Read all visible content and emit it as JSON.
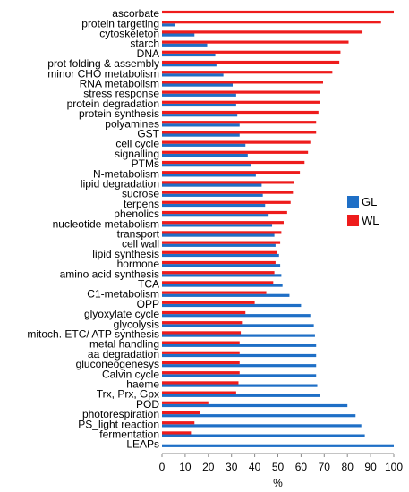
{
  "chart_data": {
    "type": "bar",
    "orientation": "horizontal",
    "title": "",
    "xlabel": "%",
    "ylabel": "",
    "xlim": [
      0,
      100
    ],
    "xticks": [
      0,
      10,
      20,
      30,
      40,
      50,
      60,
      70,
      80,
      90,
      100
    ],
    "grid": false,
    "legend_position": "right",
    "categories": [
      "ascorbate",
      "protein targeting",
      "cytoskeleton",
      "starch",
      "DNA",
      "prot folding & assembly",
      "minor CHO metabolism",
      "RNA metabolism",
      "stress response",
      "protein degradation",
      "protein synthesis",
      "polyamines",
      "GST",
      "cell cycle",
      "signalling",
      "PTMs",
      "N-metabolism",
      "lipid degradation",
      "sucrose",
      "terpens",
      "phenolics",
      "nucleotide metabolism",
      "transport",
      "cell wall",
      "lipid synthesis",
      "hormone",
      "amino acid synthesis",
      "TCA",
      "C1-metabolism",
      "OPP",
      "glyoxylate cycle",
      "glycolysis",
      "mitoch. ETC/ ATP synthesis",
      "metal handling",
      "aa degradation",
      "gluconeogenesys",
      "Calvin cycle",
      "haeme",
      "Trx, Prx, Gpx",
      "POD",
      "photorespiration",
      "PS_light reaction",
      "fermentation",
      "LEAPs"
    ],
    "series": [
      {
        "name": "GL",
        "color": "#1f6fc6",
        "values": [
          0,
          5.5,
          14,
          19.5,
          23,
          23.5,
          26.5,
          30.5,
          32,
          32,
          32.5,
          33.5,
          33.5,
          36,
          37,
          38.5,
          40.5,
          43,
          43.5,
          44.5,
          46,
          47.5,
          48.5,
          49,
          50.5,
          51,
          51.5,
          52,
          55,
          60,
          64,
          65.5,
          66,
          66.5,
          66.5,
          66.5,
          66.5,
          67,
          68,
          80,
          83.5,
          86,
          87.5,
          100
        ]
      },
      {
        "name": "WL",
        "color": "#ee1c1c",
        "values": [
          100,
          94.5,
          86.5,
          80.5,
          77,
          76.5,
          73.5,
          69.5,
          68,
          68,
          67.5,
          66.5,
          66.5,
          64,
          63,
          61.5,
          59.5,
          57,
          56.5,
          55.5,
          54,
          52.5,
          51.5,
          51,
          49.5,
          49,
          48.5,
          48,
          45,
          40,
          36,
          34.5,
          34,
          33.5,
          33.5,
          33.5,
          33.5,
          33,
          32,
          20,
          16.5,
          14,
          12.5,
          0
        ]
      }
    ]
  }
}
